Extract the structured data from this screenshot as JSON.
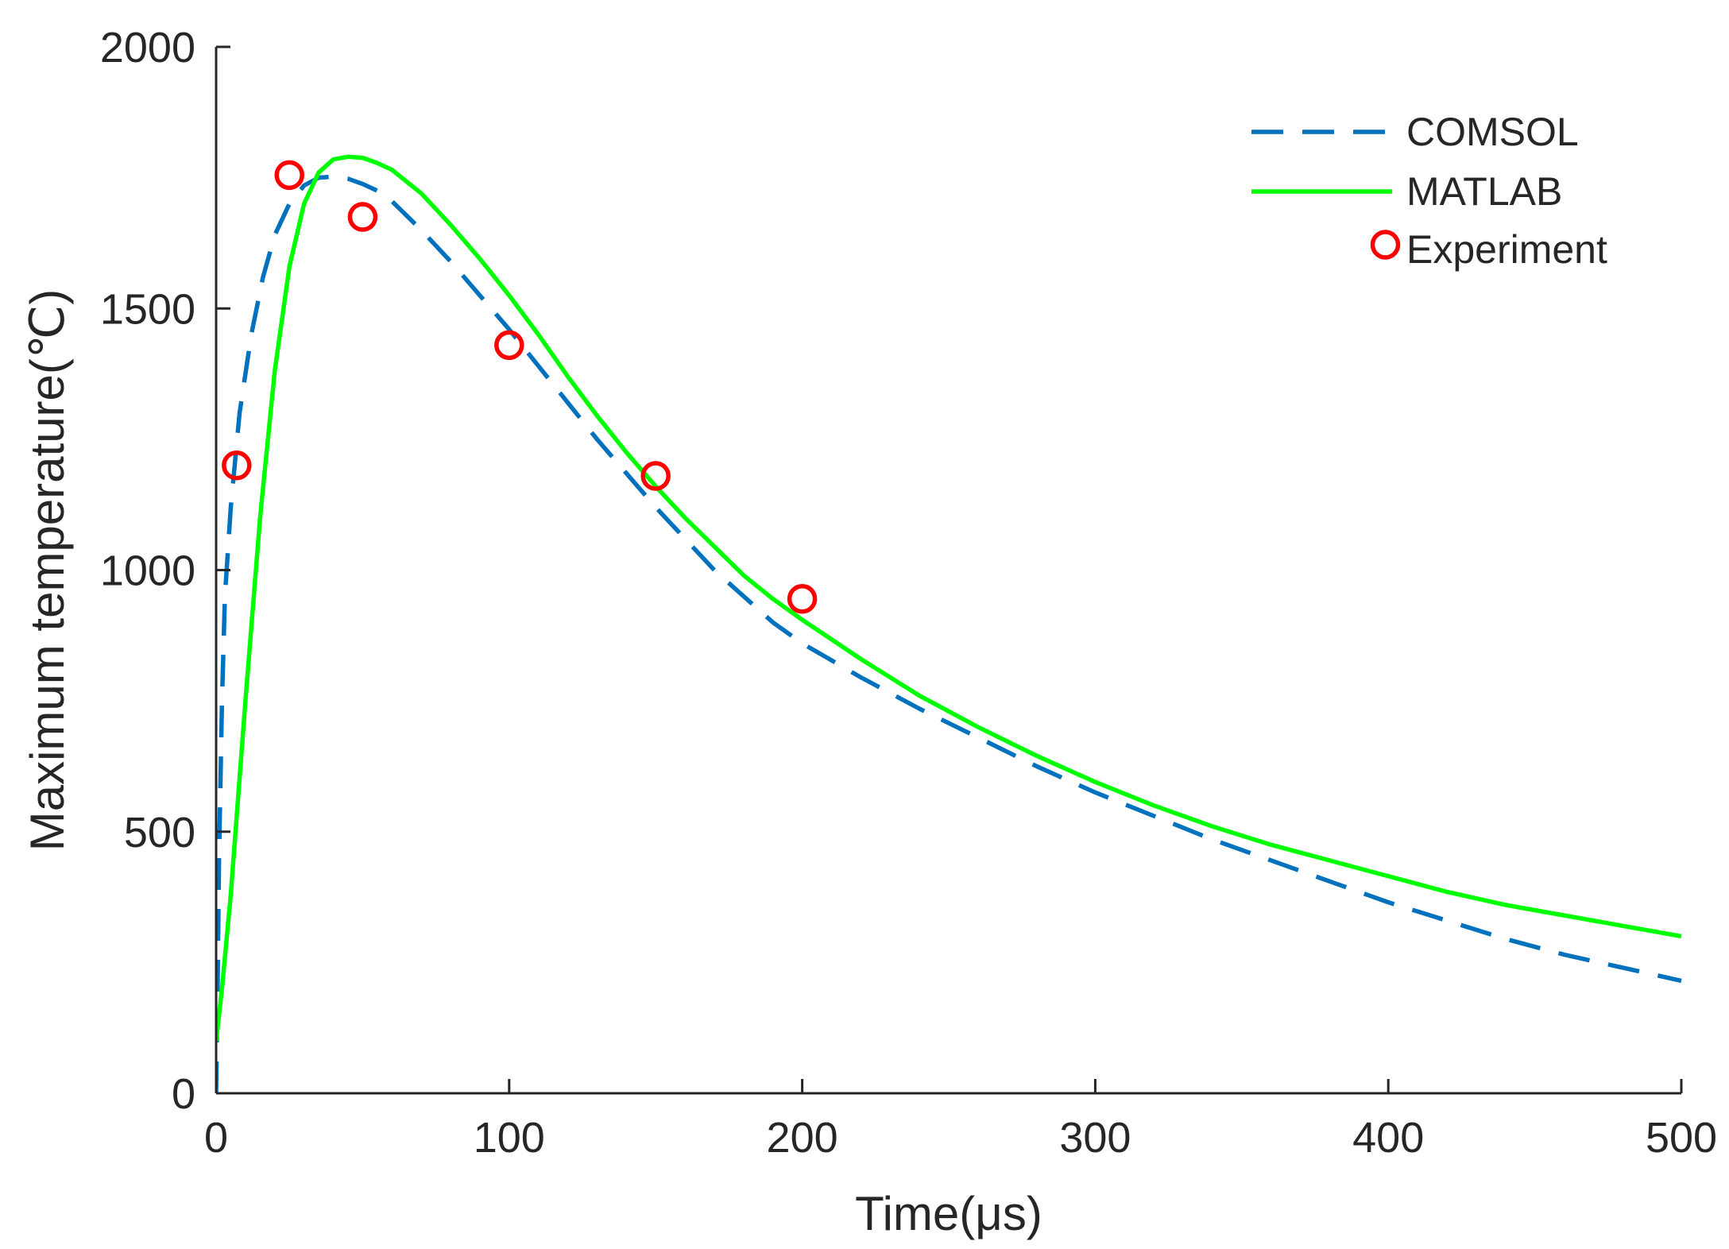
{
  "chart_data": {
    "type": "line",
    "title": "",
    "xlabel": "Time(μs)",
    "ylabel": "Maximum temperature(℃)",
    "xlim": [
      0,
      500
    ],
    "ylim": [
      0,
      2000
    ],
    "xticks": [
      0,
      100,
      200,
      300,
      400,
      500
    ],
    "yticks": [
      0,
      500,
      1000,
      1500,
      2000
    ],
    "grid": false,
    "legend_position": "top-right",
    "series": [
      {
        "name": "COMSOL",
        "style": "dashed",
        "color": "#0072BD",
        "x": [
          0,
          0.5,
          1,
          2,
          3,
          5,
          8,
          12,
          16,
          20,
          25,
          30,
          35,
          40,
          45,
          50,
          55,
          60,
          70,
          80,
          90,
          100,
          110,
          120,
          130,
          140,
          150,
          160,
          170,
          180,
          190,
          200,
          220,
          240,
          260,
          280,
          300,
          320,
          340,
          360,
          380,
          400,
          420,
          440,
          460,
          480,
          500
        ],
        "y": [
          0,
          200,
          450,
          750,
          950,
          1120,
          1300,
          1450,
          1560,
          1640,
          1700,
          1735,
          1750,
          1752,
          1748,
          1738,
          1725,
          1705,
          1650,
          1590,
          1525,
          1460,
          1390,
          1320,
          1250,
          1185,
          1120,
          1060,
          1000,
          950,
          900,
          860,
          795,
          735,
          680,
          625,
          575,
          530,
          485,
          445,
          405,
          365,
          330,
          295,
          265,
          240,
          215
        ]
      },
      {
        "name": "MATLAB",
        "style": "solid",
        "color": "#00FF00",
        "x": [
          0,
          2,
          5,
          10,
          15,
          20,
          25,
          30,
          35,
          40,
          45,
          50,
          55,
          60,
          70,
          80,
          90,
          100,
          110,
          120,
          130,
          140,
          150,
          160,
          170,
          180,
          190,
          200,
          220,
          240,
          260,
          280,
          300,
          320,
          340,
          360,
          380,
          400,
          420,
          440,
          460,
          480,
          500
        ],
        "y": [
          100,
          200,
          380,
          750,
          1100,
          1380,
          1580,
          1700,
          1760,
          1785,
          1790,
          1788,
          1778,
          1765,
          1720,
          1660,
          1595,
          1525,
          1450,
          1370,
          1295,
          1225,
          1160,
          1100,
          1045,
          990,
          945,
          905,
          830,
          760,
          700,
          645,
          595,
          550,
          510,
          475,
          445,
          415,
          385,
          360,
          340,
          320,
          300
        ]
      },
      {
        "name": "Experiment",
        "style": "markers",
        "color": "#FF0000",
        "x": [
          7,
          25,
          50,
          100,
          150,
          200
        ],
        "y": [
          1200,
          1755,
          1675,
          1430,
          1180,
          945
        ]
      }
    ]
  }
}
